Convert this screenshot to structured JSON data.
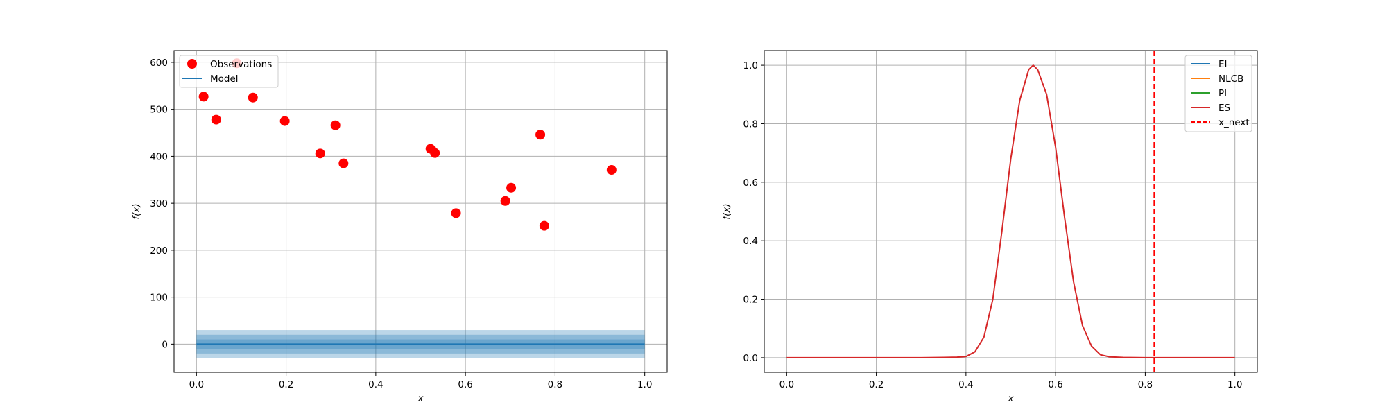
{
  "chart_data": [
    {
      "type": "scatter",
      "xlabel": "x",
      "ylabel": "f(x)",
      "xlim": [
        -0.05,
        1.05
      ],
      "ylim": [
        -60,
        625
      ],
      "xticks": [
        0.0,
        0.2,
        0.4,
        0.6,
        0.8,
        1.0
      ],
      "xtick_labels": [
        "0.0",
        "0.2",
        "0.4",
        "0.6",
        "0.8",
        "1.0"
      ],
      "yticks": [
        0,
        100,
        200,
        300,
        400,
        500,
        600
      ],
      "ytick_labels": [
        "0",
        "100",
        "200",
        "300",
        "400",
        "500",
        "600"
      ],
      "grid": true,
      "legend": {
        "placement": "top-left",
        "entries": [
          "Observations",
          "Model"
        ]
      },
      "series": [
        {
          "name": "Observations",
          "kind": "scatter",
          "color": "#ff0000",
          "x": [
            0.016,
            0.044,
            0.09,
            0.126,
            0.197,
            0.276,
            0.31,
            0.328,
            0.522,
            0.532,
            0.579,
            0.689,
            0.702,
            0.767,
            0.776,
            0.926
          ],
          "y": [
            527,
            478,
            598,
            525,
            475,
            406,
            466,
            385,
            416,
            407,
            279,
            305,
            333,
            446,
            252,
            371
          ]
        },
        {
          "name": "Model",
          "kind": "line",
          "color": "#1f77b4",
          "x": [
            0.0,
            1.0
          ],
          "y": [
            0,
            0
          ],
          "bands": [
            10,
            20,
            30
          ]
        }
      ]
    },
    {
      "type": "line",
      "xlabel": "x",
      "ylabel": "f(x)",
      "xlim": [
        -0.05,
        1.05
      ],
      "ylim": [
        -0.05,
        1.05
      ],
      "xticks": [
        0.0,
        0.2,
        0.4,
        0.6,
        0.8,
        1.0
      ],
      "xtick_labels": [
        "0.0",
        "0.2",
        "0.4",
        "0.6",
        "0.8",
        "1.0"
      ],
      "yticks": [
        0.0,
        0.2,
        0.4,
        0.6,
        0.8,
        1.0
      ],
      "ytick_labels": [
        "0.0",
        "0.2",
        "0.4",
        "0.6",
        "0.8",
        "1.0"
      ],
      "grid": true,
      "legend": {
        "placement": "top-right",
        "entries": [
          "EI",
          "NLCB",
          "PI",
          "ES",
          "x_next"
        ]
      },
      "series": [
        {
          "name": "EI",
          "color": "#1f77b4",
          "visible_curve": false
        },
        {
          "name": "NLCB",
          "color": "#ff7f0e",
          "visible_curve": false
        },
        {
          "name": "PI",
          "color": "#2ca02c",
          "visible_curve": false
        },
        {
          "name": "ES",
          "color": "#d62728",
          "x": [
            0.0,
            0.05,
            0.1,
            0.15,
            0.2,
            0.25,
            0.3,
            0.35,
            0.38,
            0.4,
            0.42,
            0.44,
            0.46,
            0.48,
            0.5,
            0.52,
            0.54,
            0.55,
            0.56,
            0.58,
            0.6,
            0.62,
            0.64,
            0.66,
            0.68,
            0.7,
            0.72,
            0.75,
            0.8,
            0.85,
            0.9,
            0.95,
            1.0
          ],
          "y": [
            0.0,
            0.0,
            0.0,
            0.0,
            0.0,
            0.0,
            0.0,
            0.001,
            0.002,
            0.004,
            0.02,
            0.07,
            0.2,
            0.43,
            0.68,
            0.88,
            0.985,
            1.0,
            0.985,
            0.9,
            0.72,
            0.48,
            0.26,
            0.11,
            0.04,
            0.01,
            0.003,
            0.001,
            0.0,
            0.0,
            0.0,
            0.0,
            0.0
          ]
        },
        {
          "name": "x_next",
          "color": "#ff0000",
          "style": "dashed",
          "x": 0.82
        }
      ]
    }
  ]
}
